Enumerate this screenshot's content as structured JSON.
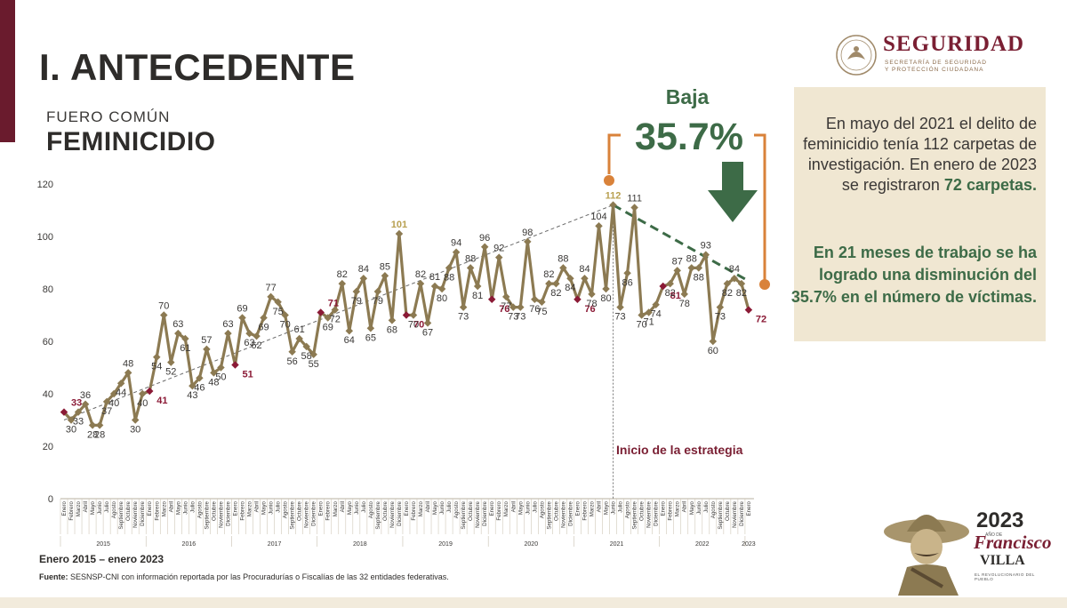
{
  "header": {
    "title": "I. ANTECEDENTE",
    "subtitle_small": "FUERO COMÚN",
    "subtitle_large": "FEMINICIDIO"
  },
  "logo": {
    "main": "SEGURIDAD",
    "sub": "SECRETARÍA DE SEGURIDAD Y PROTECCIÓN CIUDADANA"
  },
  "callout": {
    "label": "Baja",
    "percent": "35.7%"
  },
  "infobox": {
    "text_part1": "En mayo del 2021 el delito de feminicidio tenía 112 carpetas de investigación. En enero de 2023 se registraron",
    "text_highlight": "72 carpetas.",
    "text_part2": "En 21 meses de trabajo se ha logrado una disminución del",
    "text_highlight2": "35.7%",
    "text_part3": "en el número de víctimas."
  },
  "annotation": "Inicio de la estrategia",
  "footer": {
    "period": "Enero 2015 – enero 2023",
    "source_label": "Fuente:",
    "source_text": " SESNSP-CNI con información reportada por las Procuradurías o Fiscalías de las 32 entidades federativas."
  },
  "villa_logo": {
    "year": "2023",
    "year_caption": "AÑO DE",
    "name": "Francisco",
    "surname": "VILLA",
    "caption": "EL REVOLUCIONARIO DEL PUEBLO"
  },
  "colors": {
    "line": "#8c7a52",
    "marker": "#8c7a52",
    "highlight": "#8b1a36",
    "green": "#3d6b47",
    "orange": "#d9823a",
    "trend": "#6b6b6b",
    "accent": "#7a1f33"
  },
  "chart_data": {
    "type": "line",
    "ylim": [
      0,
      120
    ],
    "yticks": [
      0,
      20,
      40,
      60,
      80,
      100,
      120
    ],
    "month_labels": [
      "Enero",
      "Febrero",
      "Marzo",
      "Abril",
      "Mayo",
      "Junio",
      "Julio",
      "Agosto",
      "Septiembre",
      "Octubre",
      "Noviembre",
      "Diciembre"
    ],
    "years": [
      "2015",
      "2016",
      "2017",
      "2018",
      "2019",
      "2020",
      "2021",
      "2022",
      "2023"
    ],
    "values": [
      33,
      30,
      33,
      36,
      28,
      28,
      37,
      40,
      44,
      48,
      30,
      40,
      41,
      54,
      70,
      52,
      63,
      61,
      43,
      46,
      57,
      48,
      50,
      63,
      51,
      69,
      63,
      62,
      69,
      77,
      75,
      70,
      56,
      61,
      58,
      55,
      71,
      69,
      72,
      82,
      64,
      79,
      84,
      65,
      79,
      85,
      68,
      101,
      70,
      70,
      82,
      67,
      81,
      80,
      88,
      94,
      73,
      88,
      81,
      96,
      76,
      92,
      77,
      73,
      73,
      98,
      76,
      75,
      82,
      82,
      88,
      84,
      76,
      84,
      78,
      104,
      80,
      112,
      73,
      86,
      111,
      70,
      71,
      74,
      81,
      82,
      87,
      78,
      88,
      88,
      93,
      60,
      73,
      82,
      84,
      82,
      72
    ],
    "highlighted_points": [
      {
        "index": 0,
        "label": "33"
      },
      {
        "index": 12,
        "label": "41"
      },
      {
        "index": 24,
        "label": "51"
      },
      {
        "index": 36,
        "label": "71"
      },
      {
        "index": 48,
        "label": "70"
      },
      {
        "index": 60,
        "label": "76"
      },
      {
        "index": 72,
        "label": "76"
      },
      {
        "index": 84,
        "label": "81"
      },
      {
        "index": 96,
        "label": "72"
      }
    ],
    "peak_labels": [
      {
        "index": 47,
        "label": "101"
      },
      {
        "index": 77,
        "label": "112"
      }
    ],
    "strategy_start_index": 77,
    "trend_start": {
      "index": 0,
      "value": 30
    },
    "trend_end": {
      "index": 77,
      "value": 112
    },
    "decline_start": {
      "index": 77,
      "value": 112
    },
    "decline_end": {
      "index": 96,
      "value": 83
    }
  }
}
